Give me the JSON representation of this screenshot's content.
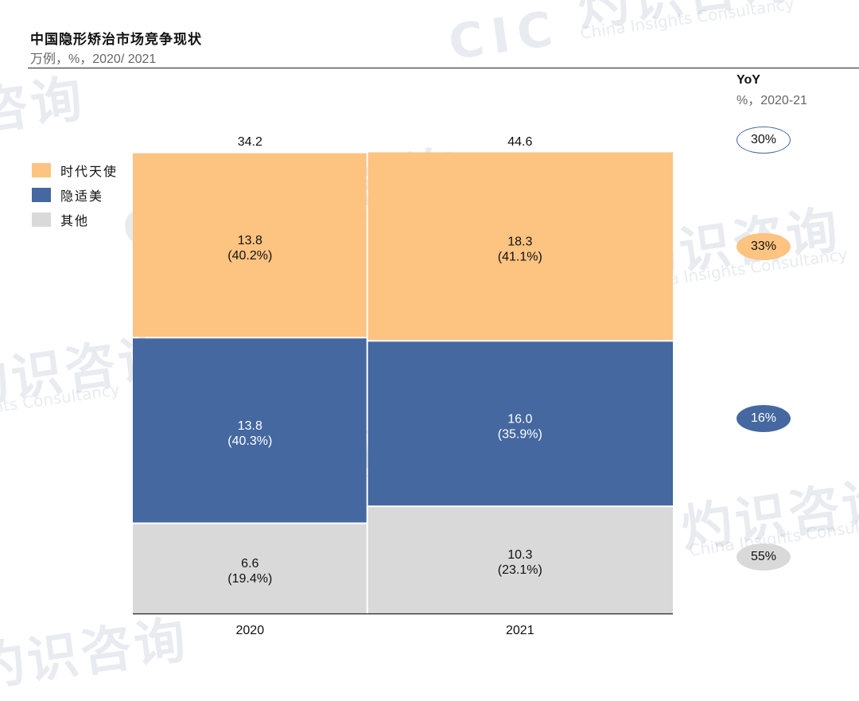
{
  "header": {
    "title": "中国隐形矫治市场竞争现状",
    "subtitle": "万例，%，2020/ 2021"
  },
  "watermark": {
    "cn": "灼识咨询",
    "en": "China Insights Consultancy",
    "logo": "CIC"
  },
  "legend": [
    {
      "label": "时代天使",
      "color": "#FDC381"
    },
    {
      "label": "隐适美",
      "color": "#44689F"
    },
    {
      "label": "其他",
      "color": "#D9D9D9"
    }
  ],
  "yoy": {
    "title": "YoY",
    "subtitle": "%，2020-21",
    "badges": [
      {
        "label": "30%",
        "style": "outline",
        "fill": "#FFFFFF",
        "border": "#44689F",
        "text_color": "#111111"
      },
      {
        "label": "33%",
        "style": "filled",
        "fill": "#FDC381",
        "border": "#FDC381",
        "text_color": "#111111"
      },
      {
        "label": "16%",
        "style": "filled",
        "fill": "#44689F",
        "border": "#44689F",
        "text_color": "#FFFFFF"
      },
      {
        "label": "55%",
        "style": "filled",
        "fill": "#D9D9D9",
        "border": "#D9D9D9",
        "text_color": "#111111"
      }
    ]
  },
  "chart_data": {
    "type": "marimekko",
    "unit": "万例",
    "categories": [
      "2020",
      "2021"
    ],
    "totals": [
      34.2,
      44.6
    ],
    "total_labels": [
      "34.2",
      "44.6"
    ],
    "series": [
      {
        "name": "其他",
        "color": "#D9D9D9",
        "text_color": "#111111",
        "values": [
          6.6,
          10.3
        ],
        "shares": [
          19.4,
          23.1
        ],
        "value_labels": [
          "6.6",
          "10.3"
        ],
        "share_labels": [
          "(19.4%)",
          "(23.1%)"
        ]
      },
      {
        "name": "隐适美",
        "color": "#44689F",
        "text_color": "#FFFFFF",
        "values": [
          13.8,
          16.0
        ],
        "shares": [
          40.3,
          35.9
        ],
        "value_labels": [
          "13.8",
          "16.0"
        ],
        "share_labels": [
          "(40.3%)",
          "(35.9%)"
        ]
      },
      {
        "name": "时代天使",
        "color": "#FDC381",
        "text_color": "#111111",
        "values": [
          13.8,
          18.3
        ],
        "shares": [
          40.2,
          41.1
        ],
        "value_labels": [
          "13.8",
          "18.3"
        ],
        "share_labels": [
          "(40.2%)",
          "(41.1%)"
        ]
      }
    ],
    "yoy": [
      55,
      16,
      33
    ],
    "yoy_total": 30,
    "xlabel": "",
    "ylabel": "",
    "grid": false,
    "legend_position": "left"
  }
}
